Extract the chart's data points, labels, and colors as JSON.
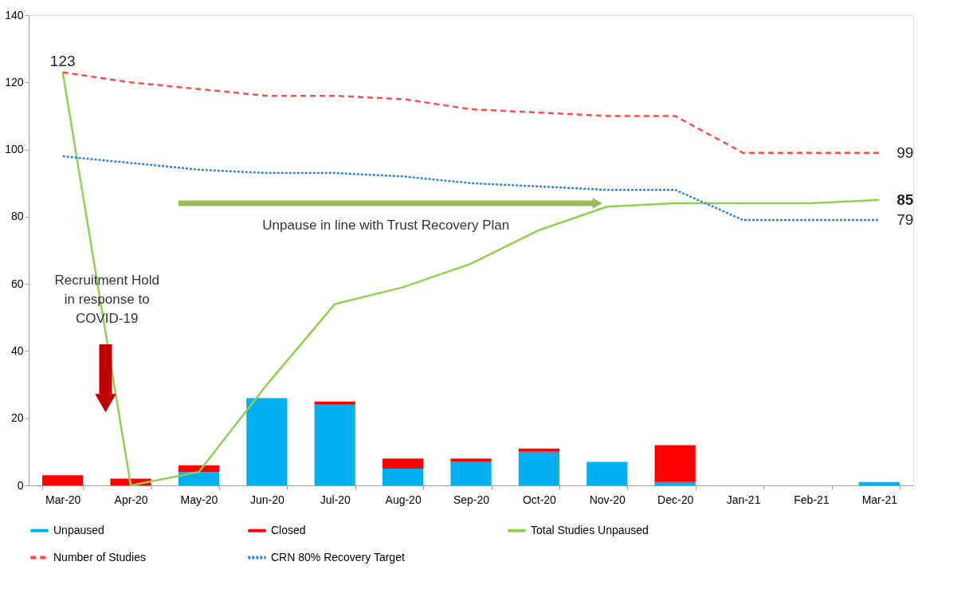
{
  "chart_data": {
    "type": "bar",
    "stacked": true,
    "categories": [
      "Mar-20",
      "Apr-20",
      "May-20",
      "Jun-20",
      "Jul-20",
      "Aug-20",
      "Sep-20",
      "Oct-20",
      "Nov-20",
      "Dec-20",
      "Jan-21",
      "Feb-21",
      "Mar-21"
    ],
    "series": [
      {
        "name": "Unpaused",
        "color": "#00b0f0",
        "values": [
          0,
          0,
          4,
          26,
          24,
          5,
          7,
          10,
          7,
          1,
          0,
          0,
          1
        ]
      },
      {
        "name": "Closed",
        "color": "#ff0000",
        "values": [
          3,
          2,
          2,
          0,
          1,
          3,
          1,
          1,
          0,
          11,
          0,
          0,
          0
        ]
      },
      {
        "name": "Total Studies Unpaused",
        "type": "line",
        "line_style": "solid",
        "color": "#92d050",
        "values": [
          123,
          0,
          4,
          30,
          54,
          59,
          66,
          76,
          83,
          84,
          84,
          84,
          85
        ],
        "value_labels": [
          null,
          null,
          null,
          null,
          null,
          null,
          null,
          null,
          null,
          null,
          null,
          null,
          "85"
        ]
      },
      {
        "name": "Number of Studies",
        "type": "line",
        "line_style": "dashed",
        "color": "#ff4d4d",
        "values": [
          123,
          120,
          118,
          116,
          116,
          115,
          112,
          111,
          110,
          110,
          99,
          99,
          99
        ],
        "value_labels": [
          "123",
          null,
          null,
          null,
          null,
          null,
          null,
          null,
          null,
          null,
          null,
          null,
          "99"
        ]
      },
      {
        "name": "CRN 80% Recovery Target",
        "type": "line",
        "line_style": "dotted",
        "color": "#2e86de",
        "values": [
          98,
          96,
          94,
          93,
          93,
          92,
          90,
          89,
          88,
          88,
          79,
          79,
          79
        ],
        "value_labels": [
          null,
          null,
          null,
          null,
          null,
          null,
          null,
          null,
          null,
          null,
          null,
          null,
          "79"
        ]
      }
    ],
    "ylim": [
      0,
      140
    ],
    "yticks": [
      0,
      20,
      40,
      60,
      80,
      100,
      120,
      140
    ],
    "grid": false,
    "legend": "bottom",
    "marker": "none",
    "annotations": [
      "Recruitment Hold\nin response to\nCOVID-19",
      "Unpause in line with Trust Recovery Plan"
    ]
  }
}
